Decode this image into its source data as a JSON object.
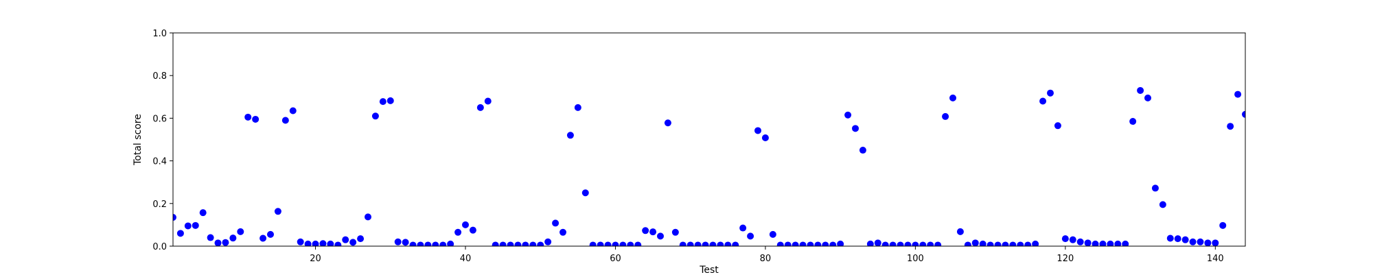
{
  "chart_data": {
    "type": "scatter",
    "title": "",
    "xlabel": "Test",
    "ylabel": "Total score",
    "xlim": [
      1,
      144
    ],
    "ylim": [
      0,
      1.0
    ],
    "x_ticks": [
      20,
      40,
      60,
      80,
      100,
      120,
      140
    ],
    "x_tick_labels": [
      "20",
      "40",
      "60",
      "80",
      "100",
      "120",
      "140"
    ],
    "y_ticks": [
      0.0,
      0.2,
      0.4,
      0.6,
      0.8,
      1.0
    ],
    "y_tick_labels": [
      "0.0",
      "0.2",
      "0.4",
      "0.6",
      "0.8",
      "1.0"
    ],
    "grid": false,
    "marker_color": "#0000ff",
    "series": [
      {
        "x": [
          1,
          2,
          3,
          4,
          5,
          6,
          7,
          8,
          9,
          10,
          11,
          12,
          13,
          14,
          15,
          16,
          17,
          18,
          19,
          20,
          21,
          22,
          23,
          24,
          25,
          26,
          27,
          28,
          29,
          30,
          31,
          32,
          33,
          34,
          35,
          36,
          37,
          38,
          39,
          40,
          41,
          42,
          43,
          44,
          45,
          46,
          47,
          48,
          49,
          50,
          51,
          52,
          53,
          54,
          55,
          56,
          57,
          58,
          59,
          60,
          61,
          62,
          63,
          64,
          65,
          66,
          67,
          68,
          69,
          70,
          71,
          72,
          73,
          74,
          75,
          76,
          77,
          78,
          79,
          80,
          81,
          82,
          83,
          84,
          85,
          86,
          87,
          88,
          89,
          90,
          91,
          92,
          93,
          94,
          95,
          96,
          97,
          98,
          99,
          100,
          101,
          102,
          103,
          104,
          105,
          106,
          107,
          108,
          109,
          110,
          111,
          112,
          113,
          114,
          115,
          116,
          117,
          118,
          119,
          120,
          121,
          122,
          123,
          124,
          125,
          126,
          127,
          128,
          129,
          130,
          131,
          132,
          133,
          134,
          135,
          136,
          137,
          138,
          139,
          140,
          141,
          142,
          143,
          144
        ],
        "y": [
          0.135,
          0.06,
          0.095,
          0.097,
          0.157,
          0.04,
          0.015,
          0.017,
          0.038,
          0.068,
          0.605,
          0.595,
          0.037,
          0.055,
          0.163,
          0.59,
          0.635,
          0.02,
          0.01,
          0.01,
          0.012,
          0.01,
          0.005,
          0.03,
          0.018,
          0.035,
          0.137,
          0.61,
          0.678,
          0.682,
          0.02,
          0.018,
          0.005,
          0.005,
          0.005,
          0.005,
          0.005,
          0.01,
          0.065,
          0.1,
          0.075,
          0.65,
          0.68,
          0.005,
          0.005,
          0.005,
          0.005,
          0.005,
          0.005,
          0.005,
          0.02,
          0.108,
          0.065,
          0.52,
          0.65,
          0.25,
          0.005,
          0.005,
          0.005,
          0.005,
          0.005,
          0.005,
          0.005,
          0.073,
          0.067,
          0.047,
          0.578,
          0.065,
          0.005,
          0.005,
          0.005,
          0.005,
          0.005,
          0.005,
          0.005,
          0.005,
          0.085,
          0.047,
          0.542,
          0.508,
          0.055,
          0.005,
          0.005,
          0.005,
          0.005,
          0.005,
          0.005,
          0.005,
          0.005,
          0.01,
          0.615,
          0.552,
          0.45,
          0.01,
          0.015,
          0.005,
          0.005,
          0.005,
          0.005,
          0.005,
          0.005,
          0.005,
          0.005,
          0.608,
          0.695,
          0.068,
          0.005,
          0.015,
          0.01,
          0.005,
          0.005,
          0.005,
          0.005,
          0.005,
          0.005,
          0.01,
          0.68,
          0.718,
          0.565,
          0.035,
          0.03,
          0.02,
          0.015,
          0.01,
          0.01,
          0.01,
          0.01,
          0.01,
          0.585,
          0.73,
          0.695,
          0.272,
          0.195,
          0.037,
          0.035,
          0.03,
          0.02,
          0.02,
          0.015,
          0.015,
          0.097,
          0.562,
          0.712,
          0.618
        ]
      }
    ]
  }
}
